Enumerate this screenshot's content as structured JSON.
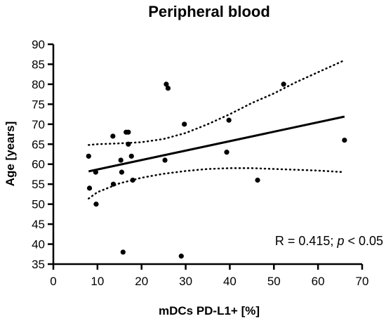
{
  "chart_data": {
    "type": "scatter",
    "title": "Peripheral blood",
    "xlabel": "mDCs PD-L1+ [%]",
    "ylabel": "Age [years]",
    "xlim": [
      0,
      70
    ],
    "ylim": [
      35,
      90
    ],
    "xticks": [
      0,
      10,
      20,
      30,
      40,
      50,
      60,
      70
    ],
    "yticks": [
      35,
      40,
      45,
      50,
      55,
      60,
      65,
      70,
      75,
      80,
      85,
      90
    ],
    "grid": false,
    "annotation": {
      "prefix": "R = 0.415; ",
      "italic": "p",
      "suffix": " < 0.05",
      "placement": "lower-right"
    },
    "points": [
      {
        "x": 8,
        "y": 62
      },
      {
        "x": 8.2,
        "y": 54
      },
      {
        "x": 9.6,
        "y": 58
      },
      {
        "x": 9.7,
        "y": 50
      },
      {
        "x": 13.5,
        "y": 67
      },
      {
        "x": 13.6,
        "y": 55
      },
      {
        "x": 15.3,
        "y": 61
      },
      {
        "x": 15.5,
        "y": 58
      },
      {
        "x": 15.8,
        "y": 38
      },
      {
        "x": 16.5,
        "y": 68
      },
      {
        "x": 17,
        "y": 68
      },
      {
        "x": 17,
        "y": 65
      },
      {
        "x": 17.7,
        "y": 62
      },
      {
        "x": 18,
        "y": 56
      },
      {
        "x": 25.3,
        "y": 61
      },
      {
        "x": 25.6,
        "y": 80
      },
      {
        "x": 26,
        "y": 79
      },
      {
        "x": 29,
        "y": 37
      },
      {
        "x": 29.7,
        "y": 70
      },
      {
        "x": 39.3,
        "y": 63
      },
      {
        "x": 39.8,
        "y": 71
      },
      {
        "x": 46.3,
        "y": 56
      },
      {
        "x": 52.2,
        "y": 80
      },
      {
        "x": 66,
        "y": 66
      }
    ],
    "fit_line": {
      "x": [
        8,
        66
      ],
      "y": [
        58.2,
        71.9
      ]
    },
    "ci_upper": {
      "x": [
        8,
        10,
        15,
        20,
        25,
        30,
        35,
        40,
        45,
        50,
        55,
        60,
        66
      ],
      "y": [
        64.8,
        65.0,
        65.2,
        65.5,
        66.3,
        67.8,
        70.0,
        72.5,
        75.3,
        77.7,
        80.5,
        83.0,
        86.0
      ]
    },
    "ci_lower": {
      "x": [
        8,
        10,
        15,
        20,
        25,
        30,
        35,
        40,
        45,
        50,
        55,
        60,
        66
      ],
      "y": [
        51.4,
        53.0,
        55.2,
        56.6,
        57.6,
        58.3,
        58.8,
        59.0,
        59.0,
        58.8,
        58.6,
        58.4,
        58.0
      ]
    }
  }
}
